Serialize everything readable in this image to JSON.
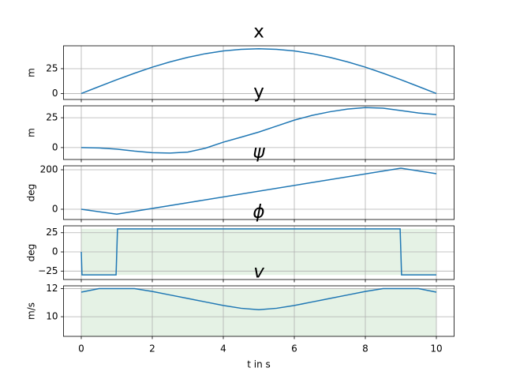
{
  "chart_data": [
    {
      "type": "line",
      "title": "x",
      "ylabel": "m",
      "color": "#1f77b4",
      "grid": true,
      "x": [
        0,
        0.5,
        1,
        1.5,
        2,
        2.5,
        3,
        3.5,
        4,
        4.5,
        5,
        5.5,
        6,
        6.5,
        7,
        7.5,
        8,
        8.5,
        9,
        9.5,
        10
      ],
      "values": [
        0,
        7.0,
        13.9,
        20.4,
        26.5,
        31.8,
        36.4,
        40.1,
        42.8,
        44.4,
        45,
        44.4,
        42.8,
        40.1,
        36.4,
        31.8,
        26.5,
        20.4,
        13.9,
        7.0,
        0
      ],
      "xlim": [
        -0.5,
        10.5
      ],
      "xticks": [
        0,
        2,
        4,
        6,
        8,
        10
      ],
      "ylim": [
        -6,
        48
      ],
      "yticks": [
        0,
        25
      ]
    },
    {
      "type": "line",
      "title": "y",
      "ylabel": "m",
      "color": "#1f77b4",
      "grid": true,
      "x": [
        0,
        0.5,
        1,
        1.5,
        2,
        2.5,
        3,
        3.5,
        4,
        4.5,
        5,
        5.5,
        6,
        6.5,
        7,
        7.5,
        8,
        8.5,
        9,
        9.5,
        10
      ],
      "values": [
        0,
        -0.3,
        -1.3,
        -3,
        -4.3,
        -4.6,
        -3.8,
        -0.5,
        4.5,
        8.7,
        13,
        18,
        23,
        27,
        30,
        32.3,
        33.5,
        33,
        31,
        29,
        27.6
      ],
      "xlim": [
        -0.5,
        10.5
      ],
      "xticks": [
        0,
        2,
        4,
        6,
        8,
        10
      ],
      "ylim": [
        -10,
        35
      ],
      "yticks": [
        0,
        25
      ]
    },
    {
      "type": "line",
      "title": "ψ",
      "ylabel": "deg",
      "color": "#1f77b4",
      "grid": true,
      "x": [
        0,
        1,
        9,
        10
      ],
      "values": [
        0,
        -25,
        208,
        180
      ],
      "xlim": [
        -0.5,
        10.5
      ],
      "xticks": [
        0,
        2,
        4,
        6,
        8,
        10
      ],
      "ylim": [
        -52,
        220
      ],
      "yticks": [
        0,
        200
      ]
    },
    {
      "type": "line",
      "title": "ϕ",
      "ylabel": "deg",
      "color": "#1f77b4",
      "grid": true,
      "x": [
        0,
        0.02,
        0.98,
        1.02,
        8.98,
        9.02,
        10
      ],
      "values": [
        0,
        -30,
        -30,
        30,
        30,
        -30,
        -30
      ],
      "band": [
        -30,
        30
      ],
      "band_color": "#e5f2e5",
      "xlim": [
        -0.5,
        10.5
      ],
      "xticks": [
        0,
        2,
        4,
        6,
        8,
        10
      ],
      "ylim": [
        -36,
        34
      ],
      "yticks": [
        {
          "value": -25,
          "label": "−25"
        },
        0,
        25
      ]
    },
    {
      "type": "line",
      "title": "v",
      "ylabel": "m/s",
      "xlabel": "t in s",
      "color": "#1f77b4",
      "grid": true,
      "x": [
        0,
        0.5,
        1,
        1.5,
        2,
        2.5,
        3,
        3.5,
        4,
        4.5,
        5,
        5.5,
        6,
        6.5,
        7,
        7.5,
        8,
        8.5,
        9,
        9.5,
        10
      ],
      "values": [
        11.75,
        12,
        12,
        12,
        11.8,
        11.55,
        11.3,
        11.05,
        10.8,
        10.6,
        10.5,
        10.6,
        10.8,
        11.05,
        11.3,
        11.55,
        11.8,
        12,
        12,
        12,
        11.75
      ],
      "band": [
        8,
        12
      ],
      "band_color": "#e5f2e5",
      "xlim": [
        -0.5,
        10.5
      ],
      "xticks": [
        0,
        2,
        4,
        6,
        8,
        10
      ],
      "ylim": [
        8.6,
        12.2
      ],
      "yticks": [
        10,
        12
      ]
    }
  ]
}
